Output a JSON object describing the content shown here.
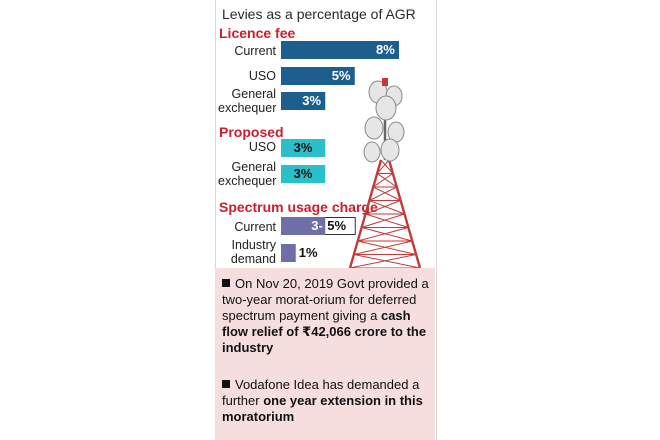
{
  "chart_data": {
    "type": "bar",
    "title": "Levies as a percentage of AGR",
    "unit": "%",
    "groups": [
      {
        "name": "Licence fee",
        "rows": [
          {
            "label": [
              "Current"
            ],
            "value": 8,
            "display": "8%"
          },
          {
            "label": [
              "USO"
            ],
            "value": 5,
            "display": "5%"
          },
          {
            "label": [
              "General",
              "exchequer"
            ],
            "value": 3,
            "display": "3%"
          }
        ]
      },
      {
        "name": "Proposed",
        "rows": [
          {
            "label": [
              "USO"
            ],
            "value": 3,
            "display": "3%"
          },
          {
            "label": [
              "General",
              "exchequer"
            ],
            "value": 3,
            "display": "3%"
          }
        ]
      },
      {
        "name": "Spectrum usage charge",
        "rows": [
          {
            "label": [
              "Current"
            ],
            "range": [
              3,
              5
            ],
            "display_low": "3-",
            "display_high": "5%"
          },
          {
            "label": [
              "Industry",
              "demand"
            ],
            "value": 1,
            "display": "1%"
          }
        ]
      }
    ]
  },
  "colors": {
    "licence": "#1c5f8e",
    "proposed": "#2bbfc9",
    "spectrum": "#6e6fa8",
    "section_title": "#c8202e",
    "notes_bg": "#f7dede",
    "tower": "#c23a3a"
  },
  "notes": [
    {
      "parts": [
        {
          "text": "On Nov 20, 2019 Govt provided a two-year morat-orium for deferred spectrum payment giving a ",
          "bold": false
        },
        {
          "text": "cash flow relief of ₹42,066 crore to the industry",
          "bold": true
        }
      ]
    },
    {
      "parts": [
        {
          "text": "Vodafone Idea has demanded a further ",
          "bold": false
        },
        {
          "text": "one year extension in this moratorium",
          "bold": true
        }
      ]
    }
  ],
  "illustration": "telecom-tower-icon"
}
